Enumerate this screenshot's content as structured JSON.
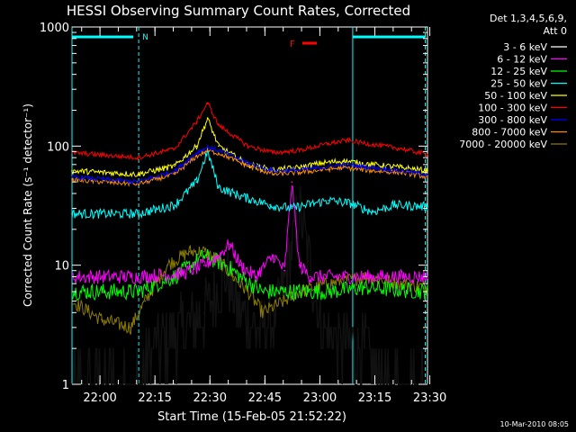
{
  "chart_data": {
    "type": "line",
    "title": "HESSI Observing Summary Count Rates, Corrected",
    "xlabel": "Start Time (15-Feb-05 21:52:22)",
    "ylabel": "Corrected Count Rate (s⁻¹ detector⁻¹)",
    "yscale": "log",
    "ylim": [
      1,
      1000
    ],
    "xlim_minutes_after_start": [
      0,
      97
    ],
    "x_ticks": [
      "22:00",
      "22:15",
      "22:30",
      "22:45",
      "23:00",
      "23:15",
      "23:30"
    ],
    "y_ticks": [
      "1",
      "10",
      "100",
      "1000"
    ],
    "footer": "10-Mar-2010 08:05",
    "legend_header": [
      "Det 1,3,4,5,6,9,",
      "Att 0"
    ],
    "flags": {
      "night_label": "N",
      "flare_label": "F",
      "night_color": "#00ffff",
      "flare_color": "#ff0000"
    },
    "series": [
      {
        "name": "3 - 6 keV",
        "color": "#000000",
        "points": [
          [
            0,
            1
          ],
          [
            18,
            1
          ],
          [
            22,
            2
          ],
          [
            30,
            3
          ],
          [
            36,
            4
          ],
          [
            42,
            8
          ],
          [
            46,
            4
          ],
          [
            50,
            3
          ],
          [
            55,
            3
          ],
          [
            59,
            10
          ],
          [
            62,
            30
          ],
          [
            65,
            10
          ],
          [
            68,
            3
          ],
          [
            75,
            2
          ],
          [
            80,
            2
          ],
          [
            86,
            1
          ],
          [
            97,
            1
          ]
        ]
      },
      {
        "name": "6 - 12 keV",
        "color": "#ff00ff",
        "points": [
          [
            0,
            8
          ],
          [
            18,
            8
          ],
          [
            30,
            8.5
          ],
          [
            36,
            10
          ],
          [
            40,
            12
          ],
          [
            43,
            15
          ],
          [
            46,
            10
          ],
          [
            50,
            8
          ],
          [
            55,
            12
          ],
          [
            58,
            9
          ],
          [
            60,
            50
          ],
          [
            62,
            10
          ],
          [
            65,
            8
          ],
          [
            80,
            8
          ],
          [
            97,
            8
          ]
        ]
      },
      {
        "name": "12 - 25 keV",
        "color": "#00ff00",
        "points": [
          [
            0,
            6
          ],
          [
            18,
            6
          ],
          [
            28,
            8
          ],
          [
            36,
            12
          ],
          [
            42,
            10
          ],
          [
            46,
            8
          ],
          [
            52,
            6
          ],
          [
            58,
            6
          ],
          [
            62,
            6
          ],
          [
            70,
            6
          ],
          [
            80,
            6.5
          ],
          [
            97,
            6
          ]
        ]
      },
      {
        "name": "25 - 50 keV",
        "color": "#00ffff",
        "points": [
          [
            0,
            27
          ],
          [
            18,
            27
          ],
          [
            28,
            32
          ],
          [
            34,
            50
          ],
          [
            37,
            90
          ],
          [
            40,
            45
          ],
          [
            46,
            38
          ],
          [
            54,
            32
          ],
          [
            60,
            30
          ],
          [
            66,
            33
          ],
          [
            70,
            35
          ],
          [
            76,
            33
          ],
          [
            82,
            28
          ],
          [
            88,
            32
          ],
          [
            97,
            31
          ]
        ]
      },
      {
        "name": "50 - 100 keV",
        "color": "#ffff00",
        "points": [
          [
            0,
            62
          ],
          [
            18,
            58
          ],
          [
            28,
            68
          ],
          [
            34,
            100
          ],
          [
            37,
            170
          ],
          [
            40,
            100
          ],
          [
            48,
            70
          ],
          [
            55,
            63
          ],
          [
            62,
            66
          ],
          [
            68,
            72
          ],
          [
            74,
            75
          ],
          [
            82,
            70
          ],
          [
            90,
            66
          ],
          [
            97,
            62
          ]
        ]
      },
      {
        "name": "100 - 300 keV",
        "color": "#ff0000",
        "points": [
          [
            0,
            88
          ],
          [
            18,
            80
          ],
          [
            28,
            95
          ],
          [
            34,
            160
          ],
          [
            37,
            230
          ],
          [
            40,
            150
          ],
          [
            48,
            100
          ],
          [
            55,
            88
          ],
          [
            62,
            92
          ],
          [
            70,
            105
          ],
          [
            75,
            112
          ],
          [
            82,
            103
          ],
          [
            90,
            95
          ],
          [
            97,
            85
          ]
        ]
      },
      {
        "name": "300 - 800 keV",
        "color": "#0000ff",
        "points": [
          [
            0,
            55
          ],
          [
            18,
            50
          ],
          [
            28,
            62
          ],
          [
            34,
            88
          ],
          [
            37,
            98
          ],
          [
            41,
            90
          ],
          [
            48,
            72
          ],
          [
            55,
            62
          ],
          [
            62,
            63
          ],
          [
            68,
            66
          ],
          [
            74,
            70
          ],
          [
            82,
            66
          ],
          [
            90,
            62
          ],
          [
            97,
            58
          ]
        ]
      },
      {
        "name": "800 - 7000 keV",
        "color": "#ff8c00",
        "points": [
          [
            0,
            52
          ],
          [
            18,
            48
          ],
          [
            28,
            58
          ],
          [
            34,
            82
          ],
          [
            37,
            92
          ],
          [
            41,
            85
          ],
          [
            48,
            68
          ],
          [
            55,
            58
          ],
          [
            62,
            60
          ],
          [
            68,
            63
          ],
          [
            74,
            66
          ],
          [
            82,
            62
          ],
          [
            90,
            60
          ],
          [
            97,
            55
          ]
        ]
      },
      {
        "name": "7000 - 20000 keV",
        "color": "#8b7a00",
        "points": [
          [
            0,
            5
          ],
          [
            8,
            3.5
          ],
          [
            16,
            3
          ],
          [
            20,
            5
          ],
          [
            26,
            10
          ],
          [
            32,
            13
          ],
          [
            36,
            13
          ],
          [
            40,
            11
          ],
          [
            44,
            8
          ],
          [
            48,
            6
          ],
          [
            52,
            4
          ],
          [
            58,
            5
          ],
          [
            62,
            6
          ],
          [
            70,
            7
          ],
          [
            80,
            8
          ],
          [
            90,
            7
          ],
          [
            97,
            6.5
          ]
        ]
      }
    ]
  }
}
